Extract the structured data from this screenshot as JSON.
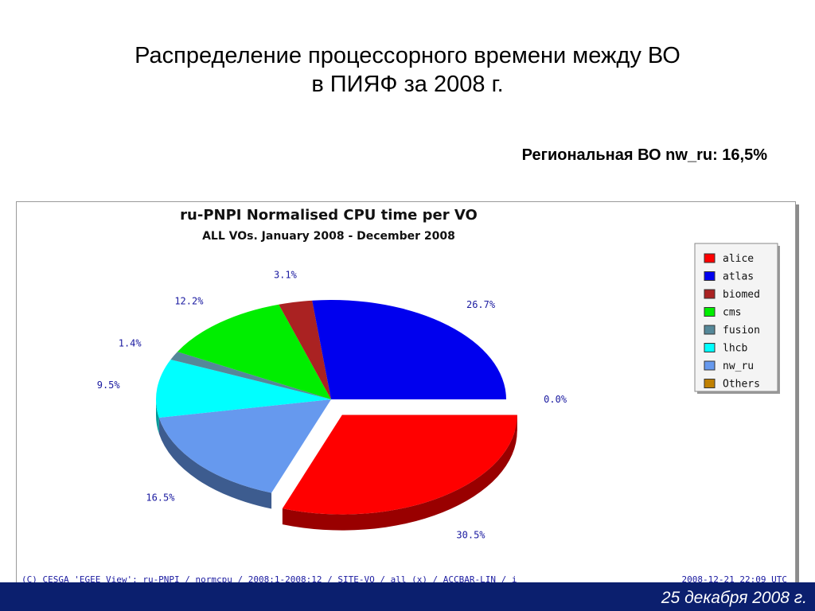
{
  "slide": {
    "title_line1": "Распределение процессорного времени между ВО",
    "title_line2": "в ПИЯФ за 2008 г.",
    "subtitle": "Региональная ВО nw_ru: 16,5%",
    "footer_date": "25 декабря 2008 г."
  },
  "chart_data": {
    "type": "pie",
    "title": "ru-PNPI Normalised CPU time per VO",
    "subtitle": "ALL VOs. January 2008 - December 2008",
    "slices": [
      {
        "name": "alice",
        "value": 30.5,
        "label": "30.5%",
        "color": "#ff0000"
      },
      {
        "name": "nw_ru",
        "value": 16.5,
        "label": "16.5%",
        "color": "#6699ee"
      },
      {
        "name": "lhcb",
        "value": 9.5,
        "label": "9.5%",
        "color": "#00ffff"
      },
      {
        "name": "fusion",
        "value": 1.4,
        "label": "1.4%",
        "color": "#558899"
      },
      {
        "name": "cms",
        "value": 12.2,
        "label": "12.2%",
        "color": "#00ee00"
      },
      {
        "name": "biomed",
        "value": 3.1,
        "label": "3.1%",
        "color": "#aa2222"
      },
      {
        "name": "atlas",
        "value": 26.7,
        "label": "26.7%",
        "color": "#0000ee"
      },
      {
        "name": "Others",
        "value": 0.0,
        "label": "0.0%",
        "color": "#c08000"
      }
    ],
    "legend": {
      "position": "right",
      "items": [
        {
          "name": "alice",
          "color": "#ff0000"
        },
        {
          "name": "atlas",
          "color": "#0000ee"
        },
        {
          "name": "biomed",
          "color": "#aa2222"
        },
        {
          "name": "cms",
          "color": "#00ee00"
        },
        {
          "name": "fusion",
          "color": "#558899"
        },
        {
          "name": "lhcb",
          "color": "#00ffff"
        },
        {
          "name": "nw_ru",
          "color": "#6699ee"
        },
        {
          "name": "Others",
          "color": "#c08000"
        }
      ]
    },
    "footer_left": "(C) CESGA 'EGEE View': ru-PNPI / normcpu / 2008:1-2008:12 / SITE-VO / all (x) / ACCBAR-LIN / i",
    "footer_right": "2008-12-21 22:09 UTC"
  }
}
